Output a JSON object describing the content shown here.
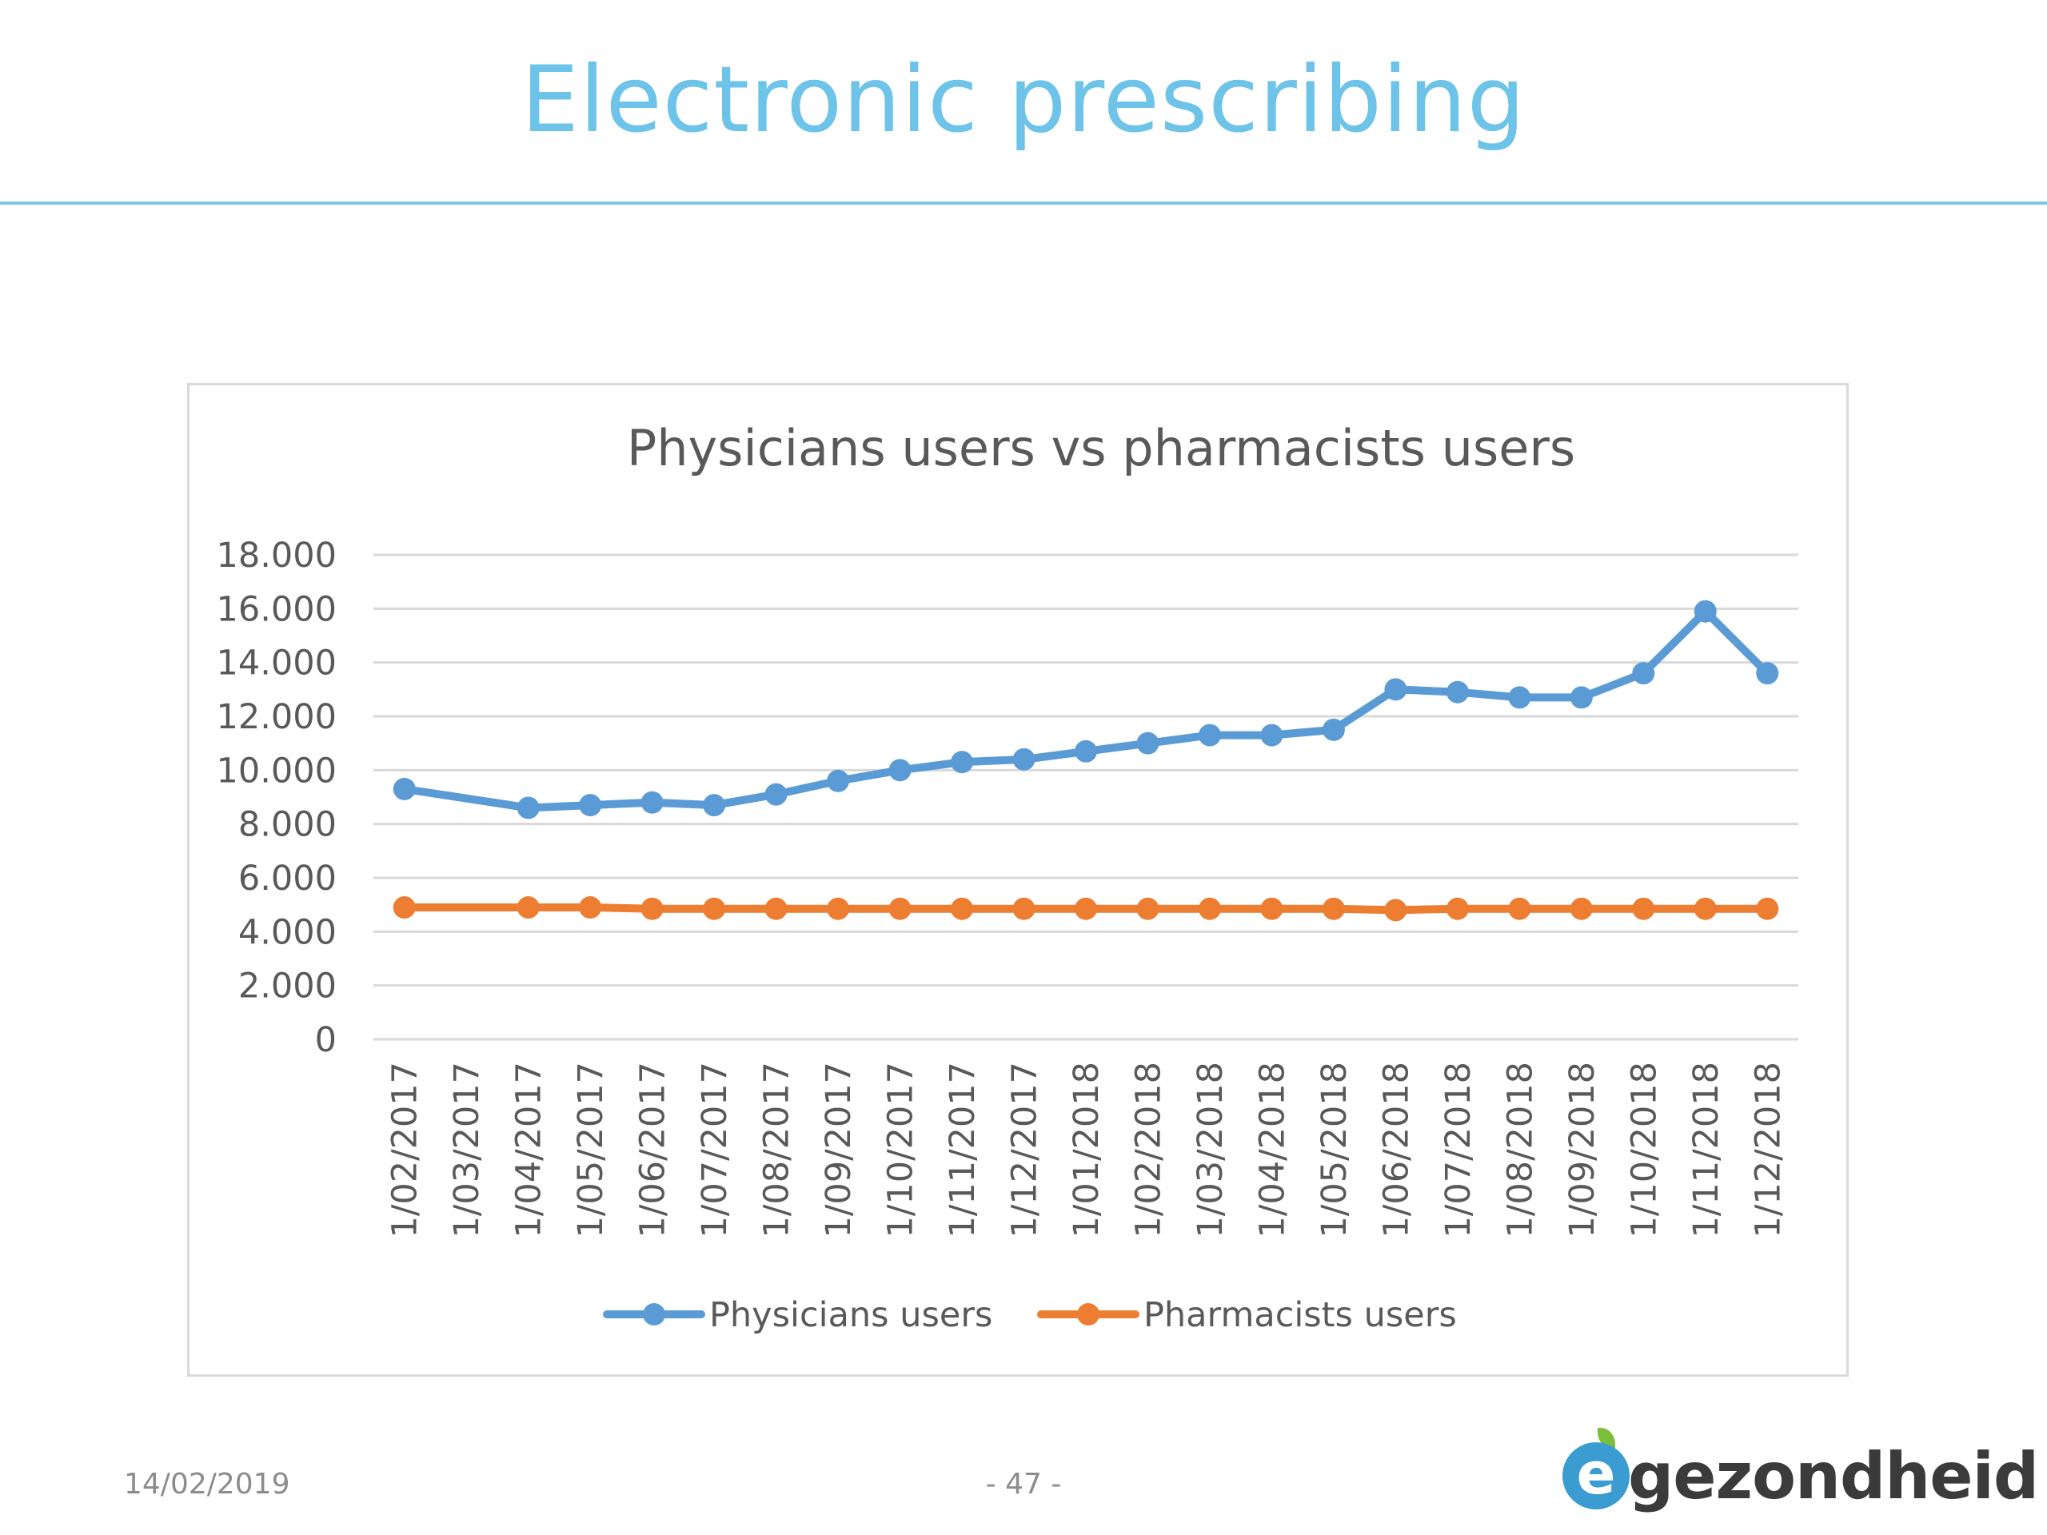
{
  "slide": {
    "title": "Electronic prescribing",
    "footer_date": "14/02/2019",
    "page_number": "- 47 -",
    "logo_letter": "e",
    "logo_text": "gezondheid"
  },
  "colors": {
    "title": "#6ec3e8",
    "physicians": "#5b9bd5",
    "pharmacists": "#ed7d31",
    "grid": "#d9d9d9",
    "text": "#595959"
  },
  "chart_data": {
    "type": "line",
    "title": "Physicians users vs pharmacists users",
    "xlabel": "",
    "ylabel": "",
    "ylim": [
      0,
      18000
    ],
    "y_ticks": [
      "0",
      "2.000",
      "4.000",
      "6.000",
      "8.000",
      "10.000",
      "12.000",
      "14.000",
      "16.000",
      "18.000"
    ],
    "categories": [
      "1/02/2017",
      "1/03/2017",
      "1/04/2017",
      "1/05/2017",
      "1/06/2017",
      "1/07/2017",
      "1/08/2017",
      "1/09/2017",
      "1/10/2017",
      "1/11/2017",
      "1/12/2017",
      "1/01/2018",
      "1/02/2018",
      "1/03/2018",
      "1/04/2018",
      "1/05/2018",
      "1/06/2018",
      "1/07/2018",
      "1/08/2018",
      "1/09/2018",
      "1/10/2018",
      "1/11/2018",
      "1/12/2018"
    ],
    "series": [
      {
        "name": "Physicians users",
        "color": "#5b9bd5",
        "values": [
          9300,
          null,
          8600,
          8700,
          8800,
          8700,
          9100,
          9600,
          10000,
          10300,
          10400,
          10700,
          11000,
          11300,
          11300,
          11500,
          13000,
          12900,
          12700,
          12700,
          13600,
          15900,
          13600
        ]
      },
      {
        "name": "Pharmacists users",
        "color": "#ed7d31",
        "values": [
          4900,
          null,
          4900,
          4900,
          4850,
          4850,
          4850,
          4850,
          4850,
          4850,
          4850,
          4850,
          4850,
          4850,
          4850,
          4850,
          4800,
          4850,
          4850,
          4850,
          4850,
          4850,
          4850
        ]
      }
    ],
    "grid": true,
    "legend": "bottom"
  }
}
